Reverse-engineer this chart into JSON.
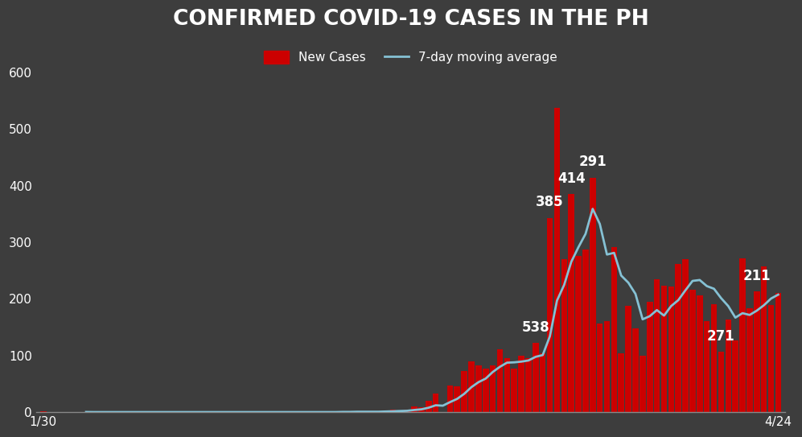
{
  "title": "CONFIRMED COVID-19 CASES IN THE PH",
  "background_color": "#3d3d3d",
  "bar_color": "#cc0000",
  "line_color": "#85c1d4",
  "text_color": "#ffffff",
  "ylabel_ticks": [
    0,
    100,
    200,
    300,
    400,
    500,
    600
  ],
  "xlim_labels": [
    "1/30",
    "4/24"
  ],
  "values": [
    1,
    0,
    0,
    0,
    0,
    0,
    0,
    0,
    0,
    0,
    0,
    0,
    0,
    0,
    0,
    0,
    0,
    0,
    0,
    0,
    0,
    0,
    0,
    0,
    0,
    0,
    0,
    0,
    0,
    0,
    0,
    0,
    0,
    0,
    0,
    0,
    0,
    0,
    0,
    0,
    0,
    0,
    2,
    0,
    2,
    0,
    0,
    0,
    3,
    5,
    3,
    5,
    10,
    8,
    20,
    33,
    0,
    47,
    45,
    73,
    90,
    82,
    77,
    82,
    111,
    96,
    77,
    99,
    96,
    122,
    104,
    343,
    538,
    270,
    385,
    276,
    287,
    414,
    156,
    160,
    291,
    104,
    188,
    148,
    100,
    195,
    235,
    223,
    222,
    261,
    270,
    216,
    206,
    160,
    190,
    106,
    163,
    127,
    271,
    184,
    213,
    257,
    189,
    211
  ],
  "annotated_indices": [
    69,
    71,
    74,
    77,
    95,
    100
  ],
  "annotated_labels": [
    "538",
    "385",
    "414",
    "291",
    "271",
    "211"
  ],
  "legend_label_bar": "New Cases",
  "legend_label_line": "7-day moving average"
}
